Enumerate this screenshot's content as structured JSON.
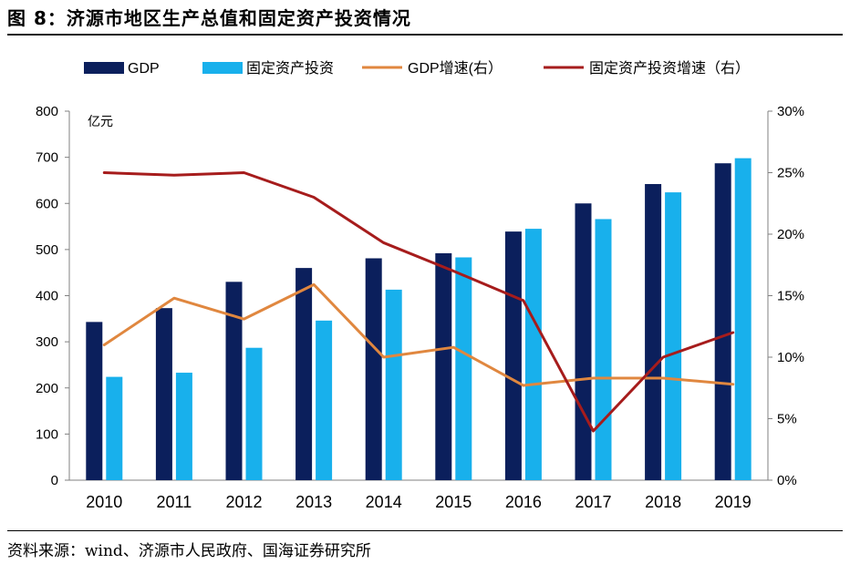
{
  "figure": {
    "title": "图 8：济源市地区生产总值和固定资产投资情况",
    "source": "资料来源：wind、济源市人民政府、国海证券研究所"
  },
  "colors": {
    "gdp": "#0b1f5c",
    "investment": "#18b0ec",
    "gdp_growth": "#e0873f",
    "investment_growth": "#a61c1c"
  },
  "chart_data": {
    "type": "bar",
    "categories": [
      "2010",
      "2011",
      "2012",
      "2013",
      "2014",
      "2015",
      "2016",
      "2017",
      "2018",
      "2019"
    ],
    "series": [
      {
        "name": "GDP",
        "type": "bar",
        "axis": "left",
        "values": [
          343,
          373,
          430,
          460,
          481,
          492,
          539,
          600,
          642,
          687
        ]
      },
      {
        "name": "固定资产投资",
        "type": "bar",
        "axis": "left",
        "values": [
          224,
          233,
          287,
          346,
          413,
          483,
          545,
          566,
          624,
          698
        ]
      },
      {
        "name": "GDP增速(右）",
        "type": "line",
        "axis": "right",
        "values": [
          11.0,
          14.8,
          13.1,
          15.9,
          10.0,
          10.8,
          7.7,
          8.3,
          8.3,
          7.8
        ]
      },
      {
        "name": "固定资产投资增速（右）",
        "type": "line",
        "axis": "right",
        "values": [
          25.0,
          24.8,
          25.0,
          23.0,
          19.3,
          17.0,
          14.6,
          4.0,
          10.0,
          12.0
        ]
      }
    ],
    "ylabel": "亿元",
    "ylim": [
      0,
      800
    ],
    "yticks": [
      "0",
      "100",
      "200",
      "300",
      "400",
      "500",
      "600",
      "700",
      "800"
    ],
    "y2lim": [
      0,
      30
    ],
    "y2ticks": [
      "0%",
      "5%",
      "10%",
      "15%",
      "20%",
      "25%",
      "30%"
    ],
    "legend": "top",
    "grid": false
  }
}
